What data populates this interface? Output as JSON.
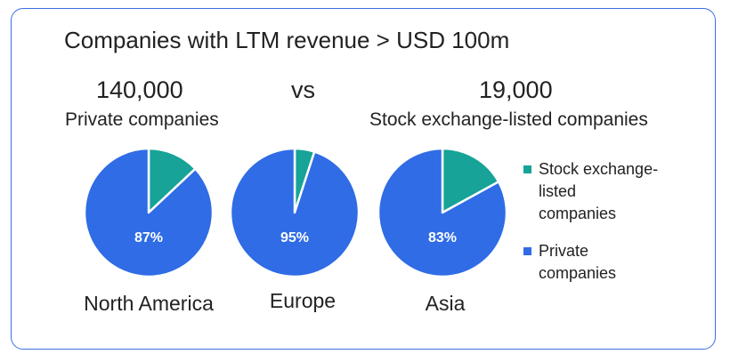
{
  "title": "Companies with LTM revenue > USD 100m",
  "left_stat": {
    "value": "140,000",
    "label": "Private companies"
  },
  "vs": "vs",
  "right_stat": {
    "value": "19,000",
    "label": "Stock exchange-listed companies"
  },
  "colors": {
    "listed": "#17a398",
    "private": "#2f6ce5",
    "border": "#3a6ee0"
  },
  "chart_data": {
    "type": "pie",
    "series": [
      {
        "name": "North America",
        "slices": [
          {
            "label": "Stock exchange-listed companies",
            "value": 13
          },
          {
            "label": "Private companies",
            "value": 87
          }
        ],
        "data_label": "87%"
      },
      {
        "name": "Europe",
        "slices": [
          {
            "label": "Stock exchange-listed companies",
            "value": 5
          },
          {
            "label": "Private companies",
            "value": 95
          }
        ],
        "data_label": "95%"
      },
      {
        "name": "Asia",
        "slices": [
          {
            "label": "Stock exchange-listed companies",
            "value": 17
          },
          {
            "label": "Private companies",
            "value": 83
          }
        ],
        "data_label": "83%"
      }
    ],
    "legend": [
      "Stock exchange-listed companies",
      "Private companies"
    ],
    "legend_position": "right"
  },
  "legend": {
    "listed_lines": [
      "Stock exchange-",
      "listed",
      "companies"
    ],
    "private_lines": [
      "Private",
      "companies"
    ]
  }
}
